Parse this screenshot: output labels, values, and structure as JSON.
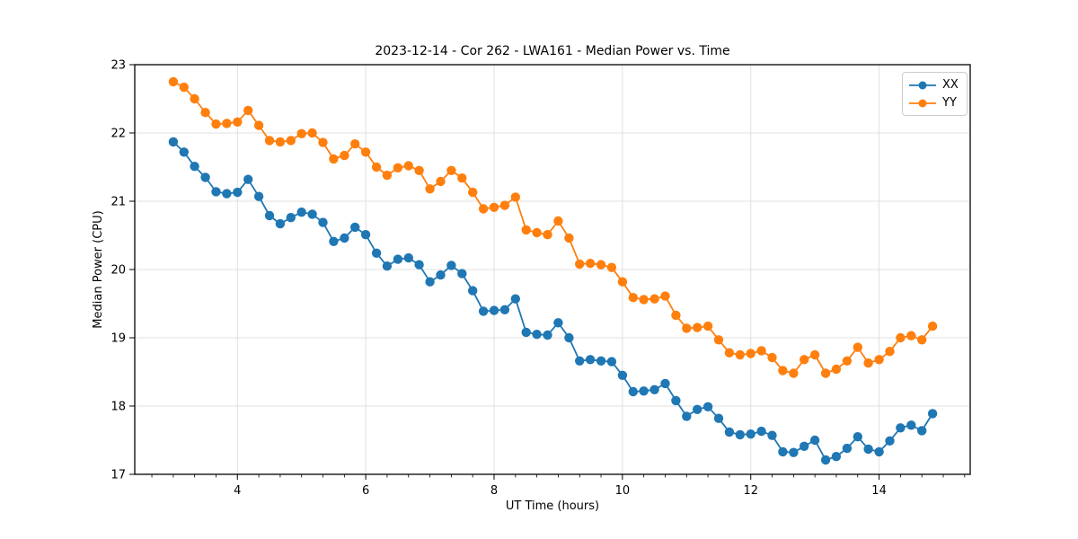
{
  "figure": {
    "title": "2023-12-14 - Cor 262 - LWA161 - Median Power vs. Time",
    "xlabel": "UT Time (hours)",
    "ylabel": "Median Power (CPU)"
  },
  "chart_data": {
    "type": "line",
    "title": "2023-12-14 - Cor 262 - LWA161 - Median Power vs. Time",
    "xlabel": "UT Time (hours)",
    "ylabel": "Median Power (CPU)",
    "xlim": [
      2.4,
      15.42
    ],
    "ylim": [
      17,
      23
    ],
    "x_major_ticks": [
      4,
      6,
      8,
      10,
      12,
      14
    ],
    "x_minor_tick_step": 0.333,
    "y_major_ticks": [
      17,
      18,
      19,
      20,
      21,
      22,
      23
    ],
    "grid": true,
    "legend_position": "upper right",
    "marker": "circle",
    "background_color": "#ffffff",
    "grid_color": "#e0e0e0",
    "spine_color": "#000000",
    "x": [
      3.0,
      3.167,
      3.333,
      3.5,
      3.667,
      3.833,
      4.0,
      4.167,
      4.333,
      4.5,
      4.667,
      4.833,
      5.0,
      5.167,
      5.333,
      5.5,
      5.667,
      5.833,
      6.0,
      6.167,
      6.333,
      6.5,
      6.667,
      6.833,
      7.0,
      7.167,
      7.333,
      7.5,
      7.667,
      7.833,
      8.0,
      8.167,
      8.333,
      8.5,
      8.667,
      8.833,
      9.0,
      9.167,
      9.333,
      9.5,
      9.667,
      9.833,
      10.0,
      10.167,
      10.333,
      10.5,
      10.667,
      10.833,
      11.0,
      11.167,
      11.333,
      11.5,
      11.667,
      11.833,
      12.0,
      12.167,
      12.333,
      12.5,
      12.667,
      12.833,
      13.0,
      13.167,
      13.333,
      13.5,
      13.667,
      13.833,
      14.0,
      14.167,
      14.333,
      14.5,
      14.667,
      14.833
    ],
    "series": [
      {
        "name": "XX",
        "color": "#1f77b4",
        "values": [
          21.87,
          21.72,
          21.51,
          21.35,
          21.14,
          21.11,
          21.13,
          21.32,
          21.07,
          20.79,
          20.67,
          20.76,
          20.84,
          20.81,
          20.69,
          20.41,
          20.46,
          20.62,
          20.51,
          20.24,
          20.05,
          20.15,
          20.17,
          20.07,
          19.82,
          19.92,
          20.06,
          19.94,
          19.69,
          19.39,
          19.4,
          19.41,
          19.57,
          19.08,
          19.05,
          19.04,
          19.22,
          19.0,
          18.66,
          18.68,
          18.66,
          18.65,
          18.45,
          18.21,
          18.22,
          18.24,
          18.33,
          18.08,
          17.85,
          17.95,
          17.99,
          17.82,
          17.62,
          17.58,
          17.59,
          17.63,
          17.57,
          17.33,
          17.32,
          17.41,
          17.5,
          17.21,
          17.26,
          17.38,
          17.55,
          17.37,
          17.33,
          17.49,
          17.68,
          17.72,
          17.64,
          17.89
        ]
      },
      {
        "name": "YY",
        "color": "#ff7f0e",
        "values": [
          22.75,
          22.67,
          22.5,
          22.3,
          22.13,
          22.14,
          22.16,
          22.33,
          22.11,
          21.89,
          21.87,
          21.89,
          21.99,
          22.0,
          21.86,
          21.62,
          21.67,
          21.84,
          21.72,
          21.5,
          21.38,
          21.49,
          21.52,
          21.45,
          21.18,
          21.29,
          21.45,
          21.34,
          21.13,
          20.89,
          20.91,
          20.94,
          21.06,
          20.58,
          20.54,
          20.51,
          20.71,
          20.46,
          20.08,
          20.09,
          20.07,
          20.03,
          19.82,
          19.59,
          19.56,
          19.57,
          19.61,
          19.33,
          19.14,
          19.15,
          19.17,
          18.97,
          18.78,
          18.75,
          18.77,
          18.81,
          18.71,
          18.52,
          18.48,
          18.68,
          18.75,
          18.48,
          18.54,
          18.66,
          18.86,
          18.63,
          18.68,
          18.8,
          19.0,
          19.03,
          18.97,
          19.17
        ]
      }
    ]
  }
}
